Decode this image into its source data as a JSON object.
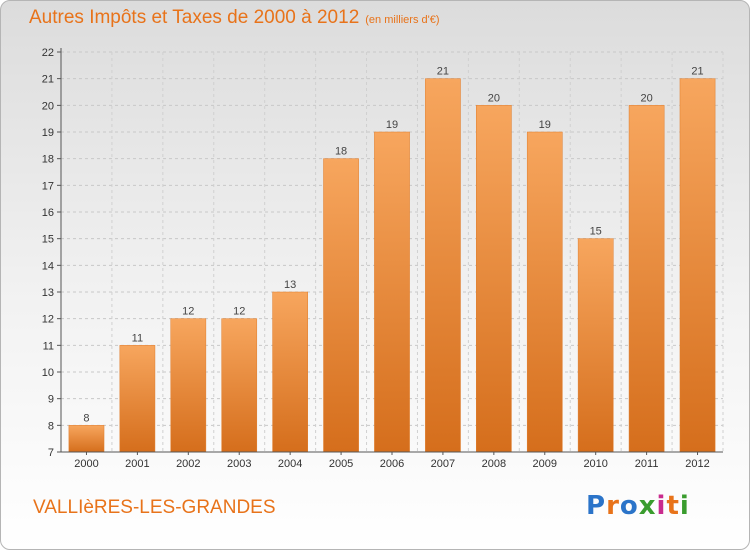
{
  "chart_data": {
    "type": "bar",
    "title": "Autres Impôts et Taxes de 2000 à 2012",
    "subtitle": "(en milliers d'€)",
    "categories": [
      "2000",
      "2001",
      "2002",
      "2003",
      "2004",
      "2005",
      "2006",
      "2007",
      "2008",
      "2009",
      "2010",
      "2011",
      "2012"
    ],
    "values": [
      8,
      11,
      12,
      12,
      13,
      18,
      19,
      21,
      20,
      19,
      15,
      20,
      21
    ],
    "ylim": [
      7,
      22
    ],
    "yticks": [
      7,
      8,
      9,
      10,
      11,
      12,
      13,
      14,
      15,
      16,
      17,
      18,
      19,
      20,
      21,
      22
    ],
    "grid": true,
    "bar_color": "#f0893a",
    "axis_color": "#555555"
  },
  "footer": {
    "commune": "VALLIèRES-LES-GRANDES",
    "logo_text": "Proxiti"
  },
  "colors": {
    "title": "#e8731a",
    "bar_light": "#f6a55c",
    "bar_dark": "#d8701d"
  }
}
